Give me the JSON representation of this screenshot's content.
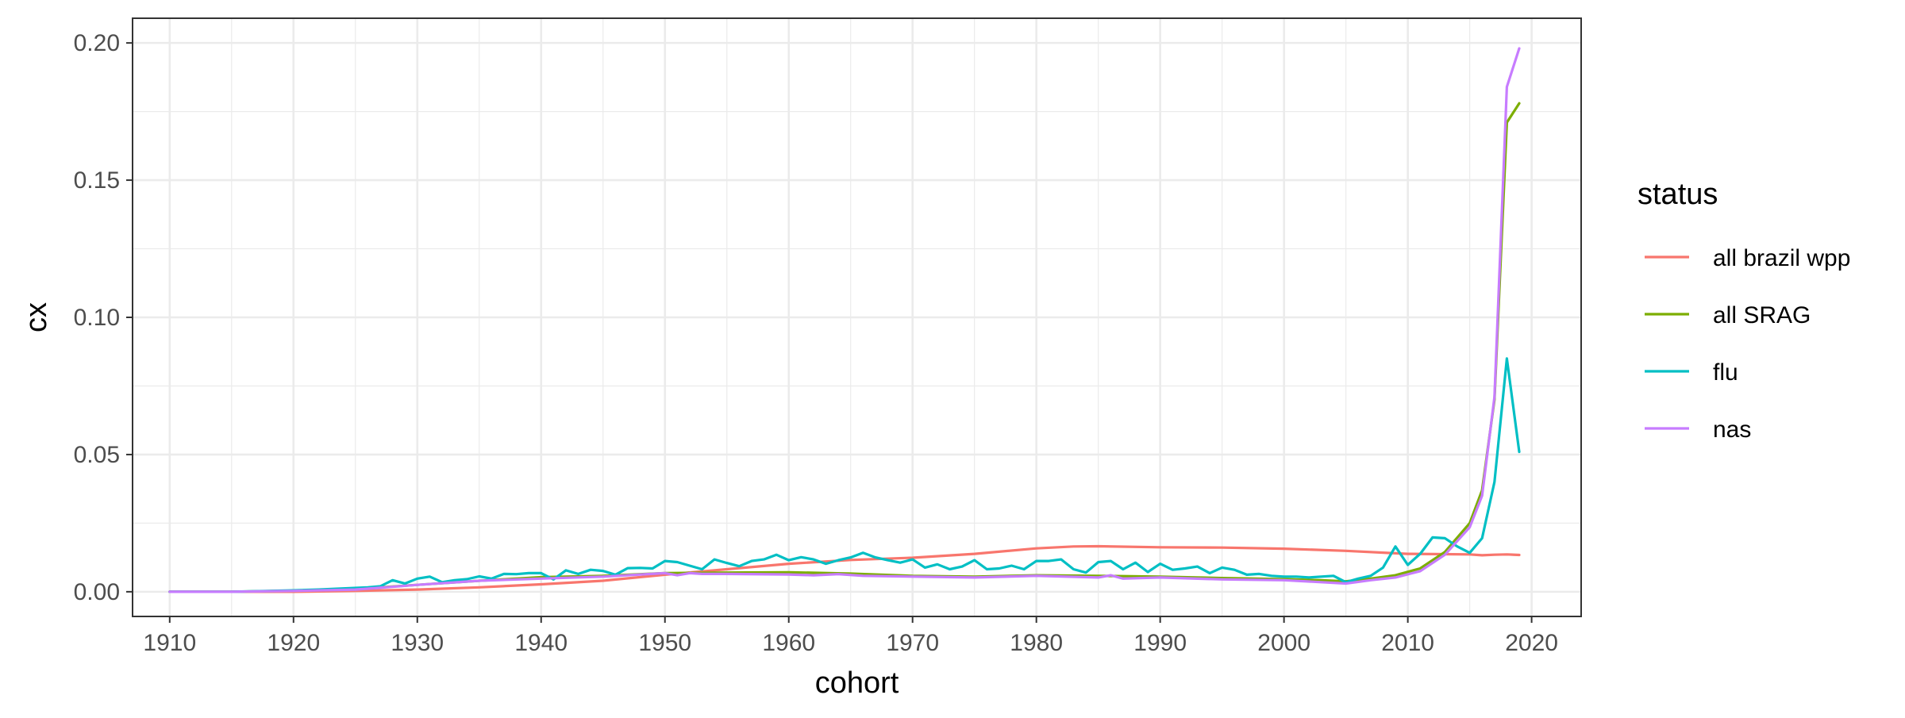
{
  "chart_data": {
    "type": "line",
    "xlabel": "cohort",
    "ylabel": "cx",
    "xlim": [
      1907,
      2024
    ],
    "ylim": [
      -0.009,
      0.209
    ],
    "x_ticks": [
      1910,
      1920,
      1930,
      1940,
      1950,
      1960,
      1970,
      1980,
      1990,
      2000,
      2010,
      2020
    ],
    "y_ticks": [
      0.0,
      0.05,
      0.1,
      0.15,
      0.2
    ],
    "y_tick_labels": [
      "0.00",
      "0.05",
      "0.10",
      "0.15",
      "0.20"
    ],
    "grid": true,
    "legend": {
      "title": "status",
      "position": "right"
    },
    "series": [
      {
        "name": "all brazil wpp",
        "color": "#F8766D",
        "x": [
          1910,
          1915,
          1920,
          1925,
          1930,
          1935,
          1940,
          1945,
          1950,
          1955,
          1960,
          1965,
          1970,
          1975,
          1980,
          1983,
          1985,
          1990,
          1995,
          2000,
          2005,
          2010,
          2013,
          2015,
          2016,
          2017,
          2018,
          2019
        ],
        "y": [
          0.0,
          0.0,
          0.0,
          0.0003,
          0.0008,
          0.0016,
          0.0027,
          0.004,
          0.0062,
          0.0082,
          0.0102,
          0.0116,
          0.0124,
          0.0138,
          0.0158,
          0.0165,
          0.0166,
          0.0162,
          0.0161,
          0.0157,
          0.0149,
          0.0138,
          0.0137,
          0.0136,
          0.0133,
          0.0135,
          0.0136,
          0.0134
        ]
      },
      {
        "name": "all SRAG",
        "color": "#7CAE00",
        "x": [
          1910,
          1915,
          1920,
          1925,
          1930,
          1935,
          1940,
          1945,
          1950,
          1955,
          1960,
          1965,
          1970,
          1975,
          1980,
          1985,
          1990,
          1995,
          2000,
          2003,
          2005,
          2007,
          2009,
          2011,
          2013,
          2015,
          2016,
          2017,
          2018,
          2019
        ],
        "y": [
          0.0,
          0.0,
          0.0004,
          0.001,
          0.0025,
          0.004,
          0.0053,
          0.0058,
          0.0068,
          0.007,
          0.0071,
          0.0066,
          0.0058,
          0.0055,
          0.006,
          0.0058,
          0.0055,
          0.005,
          0.0046,
          0.0042,
          0.0038,
          0.0048,
          0.006,
          0.0085,
          0.0145,
          0.025,
          0.037,
          0.07,
          0.171,
          0.178
        ]
      },
      {
        "name": "flu",
        "color": "#00BFC4",
        "x": [
          1910,
          1915,
          1918,
          1920,
          1922,
          1924,
          1926,
          1927,
          1928,
          1929,
          1930,
          1931,
          1932,
          1933,
          1934,
          1935,
          1936,
          1937,
          1938,
          1939,
          1940,
          1941,
          1942,
          1943,
          1944,
          1945,
          1946,
          1947,
          1948,
          1949,
          1950,
          1951,
          1952,
          1953,
          1954,
          1955,
          1956,
          1957,
          1958,
          1959,
          1960,
          1961,
          1962,
          1963,
          1964,
          1965,
          1966,
          1967,
          1968,
          1969,
          1970,
          1971,
          1972,
          1973,
          1974,
          1975,
          1976,
          1977,
          1978,
          1979,
          1980,
          1981,
          1982,
          1983,
          1984,
          1985,
          1986,
          1987,
          1988,
          1989,
          1990,
          1991,
          1992,
          1993,
          1994,
          1995,
          1996,
          1997,
          1998,
          1999,
          2000,
          2001,
          2002,
          2003,
          2004,
          2005,
          2006,
          2007,
          2008,
          2009,
          2010,
          2011,
          2012,
          2013,
          2014,
          2015,
          2016,
          2017,
          2018,
          2019
        ],
        "y": [
          0.0,
          0.0,
          0.0003,
          0.0005,
          0.0008,
          0.0012,
          0.0016,
          0.002,
          0.0042,
          0.003,
          0.0048,
          0.0055,
          0.0035,
          0.0042,
          0.0046,
          0.0056,
          0.0048,
          0.0065,
          0.0064,
          0.0068,
          0.0068,
          0.0045,
          0.0078,
          0.0065,
          0.008,
          0.0076,
          0.0062,
          0.0086,
          0.0087,
          0.0085,
          0.0112,
          0.0108,
          0.0095,
          0.0082,
          0.0118,
          0.0105,
          0.0093,
          0.0112,
          0.0118,
          0.0135,
          0.0115,
          0.0126,
          0.0118,
          0.0102,
          0.0115,
          0.0125,
          0.0142,
          0.0125,
          0.0115,
          0.0106,
          0.0118,
          0.0088,
          0.01,
          0.0082,
          0.0092,
          0.0115,
          0.0082,
          0.0085,
          0.0095,
          0.0082,
          0.0112,
          0.0112,
          0.0118,
          0.0082,
          0.007,
          0.0108,
          0.0112,
          0.0082,
          0.0106,
          0.0072,
          0.0102,
          0.008,
          0.0085,
          0.0092,
          0.0068,
          0.0088,
          0.008,
          0.0062,
          0.0065,
          0.0058,
          0.0055,
          0.0055,
          0.0052,
          0.0055,
          0.0058,
          0.0035,
          0.0048,
          0.0058,
          0.0088,
          0.0165,
          0.0098,
          0.0138,
          0.0198,
          0.0195,
          0.0165,
          0.0142,
          0.0195,
          0.04,
          0.085,
          0.051
        ]
      },
      {
        "name": "nas",
        "color": "#C77CFF",
        "x": [
          1910,
          1915,
          1920,
          1925,
          1930,
          1935,
          1940,
          1945,
          1950,
          1951,
          1952,
          1953,
          1955,
          1960,
          1962,
          1964,
          1966,
          1970,
          1975,
          1980,
          1985,
          1986,
          1987,
          1990,
          1995,
          2000,
          2003,
          2005,
          2007,
          2009,
          2011,
          2013,
          2015,
          2016,
          2017,
          2018,
          2019
        ],
        "y": [
          0.0,
          0.0,
          0.0003,
          0.0008,
          0.0025,
          0.004,
          0.0048,
          0.0055,
          0.0068,
          0.006,
          0.0068,
          0.0065,
          0.0065,
          0.0063,
          0.006,
          0.0064,
          0.0058,
          0.0055,
          0.0052,
          0.0058,
          0.0052,
          0.006,
          0.0048,
          0.0052,
          0.0045,
          0.0042,
          0.0035,
          0.003,
          0.0042,
          0.0052,
          0.0075,
          0.0135,
          0.0235,
          0.035,
          0.071,
          0.184,
          0.198
        ]
      }
    ]
  }
}
